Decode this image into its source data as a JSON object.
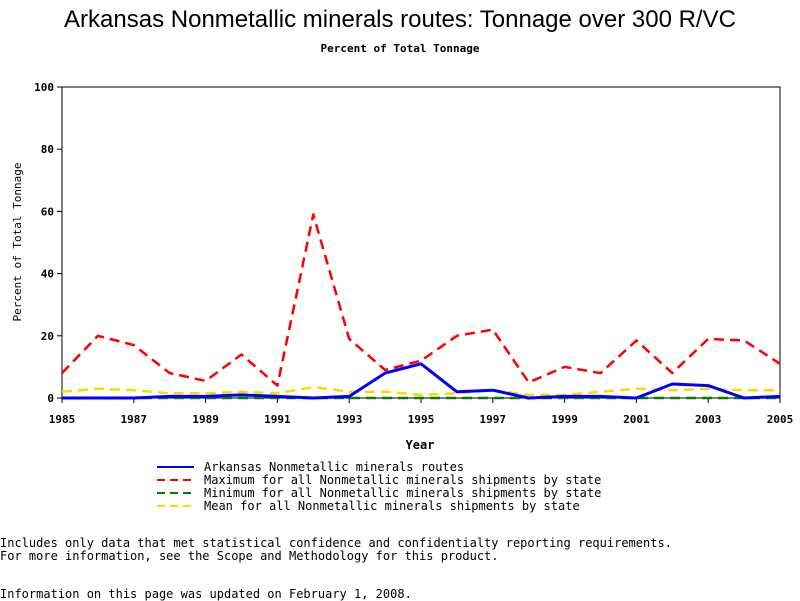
{
  "chart_data": {
    "type": "line",
    "title": "Arkansas Nonmetallic minerals routes: Tonnage over 300 R/VC",
    "subtitle": "Percent of Total Tonnage",
    "xlabel": "Year",
    "ylabel": "Percent of Total Tonnage",
    "xlim": [
      1985,
      2005
    ],
    "ylim": [
      0,
      100
    ],
    "x_ticks": [
      "1985",
      "1987",
      "1989",
      "1991",
      "1993",
      "1995",
      "1997",
      "1999",
      "2001",
      "2003",
      "2005"
    ],
    "y_ticks": [
      "0",
      "20",
      "40",
      "60",
      "80",
      "100"
    ],
    "grid": false,
    "legend_position": "bottom",
    "x": [
      1985,
      1986,
      1987,
      1988,
      1989,
      1990,
      1991,
      1992,
      1993,
      1994,
      1995,
      1996,
      1997,
      1998,
      1999,
      2000,
      2001,
      2002,
      2003,
      2004,
      2005
    ],
    "series": [
      {
        "name": "Arkansas Nonmetallic minerals routes",
        "color": "#0000ff",
        "style": "solid",
        "values": [
          0,
          0,
          0,
          0.5,
          0.5,
          1,
          0.5,
          0,
          0.5,
          8,
          11,
          2,
          2.5,
          0,
          0.5,
          0.5,
          0,
          4.5,
          4,
          0,
          0.5
        ]
      },
      {
        "name": "Maximum for all Nonmetallic minerals shipments by state",
        "color": "#ff0000",
        "style": "dashed",
        "values": [
          8,
          20,
          17,
          8,
          5.5,
          14,
          4,
          59,
          19,
          9,
          12,
          20,
          22,
          5,
          10,
          8,
          18.5,
          8,
          19,
          18.5,
          11
        ]
      },
      {
        "name": "Minimum for all Nonmetallic minerals shipments by state",
        "color": "#008000",
        "style": "dashed",
        "values": [
          0,
          0,
          0,
          0,
          0,
          0,
          0,
          0,
          0,
          0,
          0,
          0,
          0,
          0,
          0,
          0,
          0,
          0,
          0,
          0,
          0
        ]
      },
      {
        "name": "Mean for all Nonmetallic minerals shipments by state",
        "color": "#ffd700",
        "style": "dashed",
        "values": [
          2,
          3,
          2.5,
          1.5,
          1.5,
          2,
          1.5,
          3.5,
          2,
          2,
          1,
          1.5,
          2.5,
          1,
          1,
          2,
          3,
          2.5,
          3,
          2.5,
          2.5
        ]
      }
    ]
  },
  "footnotes": {
    "line1": "Includes only data that met statistical confidence and confidentialty reporting requirements.",
    "line2": "For more information, see the Scope and Methodology for this product.",
    "line3": "Information on this page was updated on February 1, 2008."
  }
}
